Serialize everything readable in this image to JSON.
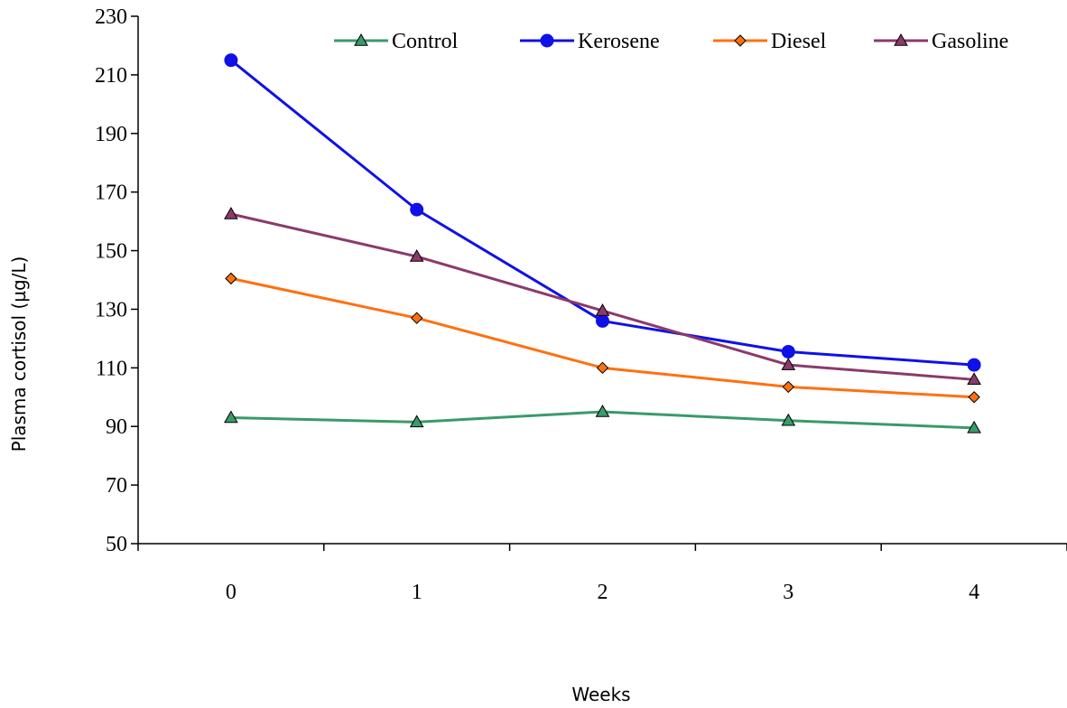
{
  "chart_data": {
    "type": "line",
    "title": "",
    "xlabel": "Weeks",
    "ylabel": "Plasma cortisol (µg/L)",
    "x": [
      0,
      1,
      2,
      3,
      4
    ],
    "x_tick_labels": [
      "0",
      "1",
      "2",
      "3",
      "4"
    ],
    "ylim": [
      50,
      230
    ],
    "y_ticks": [
      50,
      70,
      90,
      110,
      130,
      150,
      170,
      190,
      210,
      230
    ],
    "grid": false,
    "legend_position": "top-right",
    "series": [
      {
        "name": "Control",
        "color": "#3a9a6a",
        "marker": "triangle",
        "values": [
          93,
          91.5,
          95,
          92,
          89.5
        ]
      },
      {
        "name": "Kerosene",
        "color": "#1010e8",
        "marker": "circle",
        "values": [
          215,
          164,
          126,
          115.5,
          111
        ]
      },
      {
        "name": "Diesel",
        "color": "#ff7010",
        "marker": "diamond",
        "values": [
          140.5,
          127,
          110,
          103.5,
          100
        ]
      },
      {
        "name": "Gasoline",
        "color": "#8b3a6a",
        "marker": "triangle",
        "values": [
          162.5,
          148,
          129.5,
          111,
          106
        ]
      }
    ]
  }
}
